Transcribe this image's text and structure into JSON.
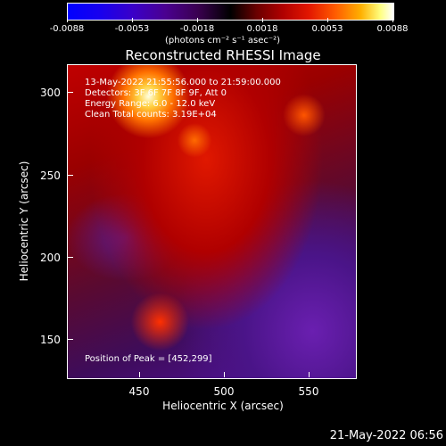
{
  "colorbar": {
    "ticks": [
      "-0.0088",
      "-0.0053",
      "-0.0018",
      "0.0018",
      "0.0053",
      "0.0088"
    ],
    "units": "(photons cm⁻² s⁻¹ asec⁻²)"
  },
  "plot": {
    "title": "Reconstructed RHESSI Image",
    "xlabel": "Heliocentric X (arcsec)",
    "ylabel": "Heliocentric Y (arcsec)",
    "xticks": [
      "450",
      "500",
      "550"
    ],
    "yticks": [
      "300",
      "250",
      "200",
      "150"
    ],
    "info": {
      "time": "13-May-2022 21:55:56.000 to 21:59:00.000",
      "detectors": "Detectors: 3F 6F 7F 8F 9F, Att 0",
      "energy": "Energy Range: 6.0 - 12.0 keV",
      "clean": "Clean    Total counts: 3.19E+04",
      "peak": "Position of Peak = [452,299]"
    }
  },
  "footer": {
    "timestamp": "21-May-2022 06:56"
  }
}
